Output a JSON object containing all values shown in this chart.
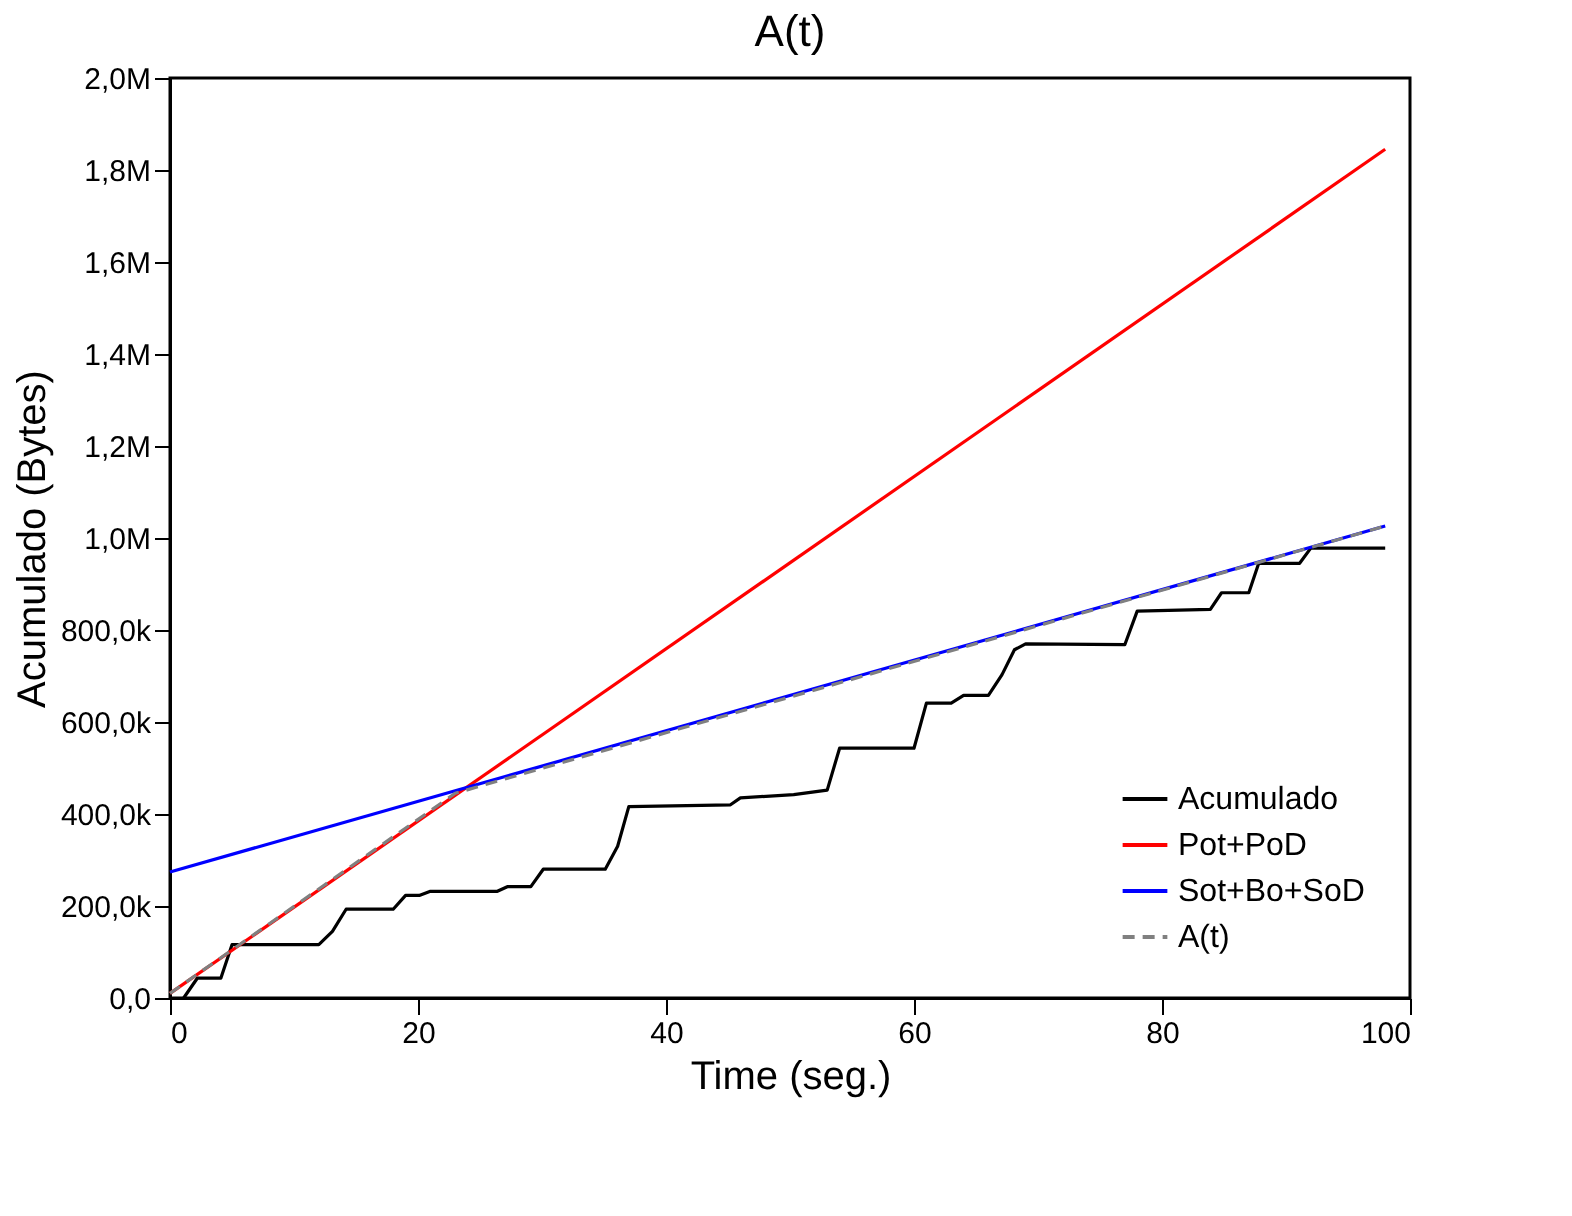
{
  "chart_data": {
    "type": "line",
    "title": "A(t)",
    "xlabel": "Time (seg.)",
    "ylabel": "Acumulado (Bytes)",
    "xlim": [
      0,
      100
    ],
    "xticks": [
      0,
      20,
      40,
      60,
      80,
      100
    ],
    "ylim": [
      0,
      2000000
    ],
    "yticks": [
      {
        "value": 0,
        "label": "0,0"
      },
      {
        "value": 200000,
        "label": "200,0k"
      },
      {
        "value": 400000,
        "label": "400,0k"
      },
      {
        "value": 600000,
        "label": "600,0k"
      },
      {
        "value": 800000,
        "label": "800,0k"
      },
      {
        "value": 1000000,
        "label": "1,0M"
      },
      {
        "value": 1200000,
        "label": "1,2M"
      },
      {
        "value": 1400000,
        "label": "1,4M"
      },
      {
        "value": 1600000,
        "label": "1,6M"
      },
      {
        "value": 1800000,
        "label": "1,8M"
      },
      {
        "value": 2000000,
        "label": "2,0M"
      }
    ],
    "grid": false,
    "legend": "bottom right",
    "marker": "none",
    "series": [
      {
        "name": "Acumulado",
        "color": "#000000",
        "line_style": "solid",
        "x": [
          1.1,
          2.2,
          4.1,
          5.0,
          12.0,
          13.1,
          14.2,
          18.0,
          19.0,
          20.1,
          21.0,
          26.4,
          27.2,
          29.1,
          30.1,
          35.1,
          36.1,
          37.0,
          45.2,
          46.0,
          50.3,
          53.0,
          54.0,
          60.0,
          61.0,
          63.0,
          64.0,
          66.0,
          67.1,
          68.1,
          69.0,
          77.0,
          78.0,
          83.9,
          84.8,
          87.0,
          87.8,
          91.1,
          92.0,
          98.0
        ],
        "values": [
          0,
          43000,
          43000,
          116000,
          116000,
          145000,
          193000,
          193000,
          223000,
          223000,
          232000,
          232000,
          242000,
          242000,
          280000,
          280000,
          330000,
          416000,
          420000,
          435000,
          442000,
          452000,
          543000,
          543000,
          641000,
          641000,
          658000,
          658000,
          703000,
          757000,
          770000,
          768000,
          841000,
          845000,
          881000,
          881000,
          945000,
          945000,
          978000,
          978000
        ]
      },
      {
        "name": "Pot+PoD",
        "color": "#ff0000",
        "line_style": "solid",
        "x": [
          0,
          98
        ],
        "values": [
          10000,
          1845000
        ]
      },
      {
        "name": "Sot+Bo+SoD",
        "color": "#0000ff",
        "line_style": "solid",
        "x": [
          0,
          98
        ],
        "values": [
          274000,
          1026000
        ]
      },
      {
        "name": "A(t)",
        "color": "#808080",
        "line_style": "dashed",
        "x": [
          0,
          23,
          98
        ],
        "values": [
          10000,
          445000,
          1026000
        ]
      }
    ]
  }
}
